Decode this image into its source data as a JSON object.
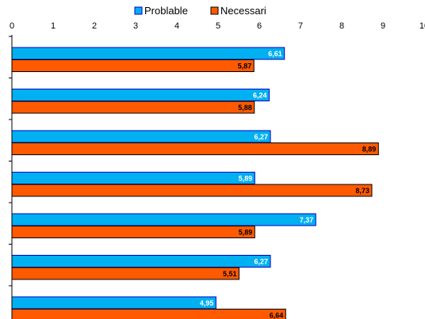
{
  "chart_data": {
    "type": "bar",
    "orientation": "horizontal",
    "xlim": [
      0,
      10
    ],
    "x_ticks": [
      "0",
      "1",
      "2",
      "3",
      "4",
      "5",
      "6",
      "7",
      "8",
      "9",
      "10"
    ],
    "categories": [
      "",
      "",
      "",
      "",
      "",
      "",
      ""
    ],
    "series": [
      {
        "name": "Problable",
        "color": "#00b0f0",
        "values": [
          6.61,
          6.24,
          6.27,
          5.89,
          7.37,
          6.27,
          4.95
        ],
        "labels": [
          "6,61",
          "6,24",
          "6,27",
          "5,89",
          "7,37",
          "6,27",
          "4,95"
        ]
      },
      {
        "name": "Necessari",
        "color": "#ff5a00",
        "values": [
          5.87,
          5.88,
          8.89,
          8.73,
          5.89,
          5.51,
          6.64
        ],
        "labels": [
          "5,87",
          "5,88",
          "8,89",
          "8,73",
          "5,89",
          "5,51",
          "6,64"
        ]
      }
    ],
    "legend_position": "top",
    "grid": false
  }
}
